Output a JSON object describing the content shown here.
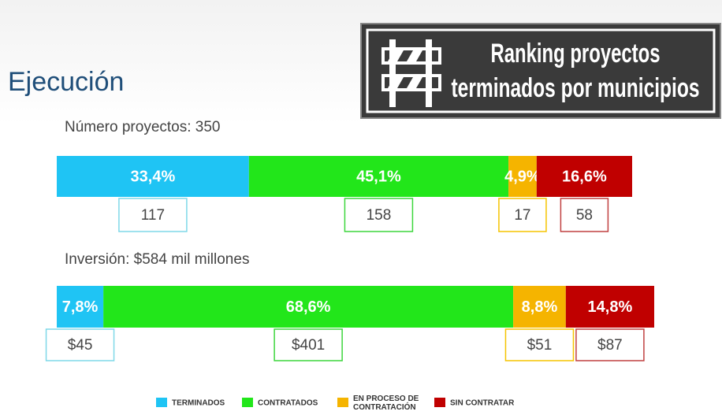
{
  "header": {
    "title": "Ejecución",
    "banner": [
      "Ranking proyectos",
      "terminados por municipios"
    ]
  },
  "legend": [
    {
      "lines": [
        "TERMINADOS"
      ],
      "color": "#1fc4f4"
    },
    {
      "lines": [
        "CONTRATADOS"
      ],
      "color": "#22e61a"
    },
    {
      "lines": [
        "EN PROCESO DE",
        "CONTRATACIÓN"
      ],
      "color": "#f5b400"
    },
    {
      "lines": [
        "SIN CONTRATAR"
      ],
      "color": "#c00000"
    }
  ],
  "chart_data": [
    {
      "type": "stacked-bar",
      "subtitle": "Número proyectos: 350",
      "values": [
        33.4,
        45.1,
        4.9,
        16.6
      ],
      "value_labels": [
        "33,4%",
        "45,1%",
        "4,9%",
        "16,6%"
      ],
      "counts": [
        117,
        158,
        17,
        58
      ],
      "xlim": [
        0,
        100
      ]
    },
    {
      "type": "stacked-bar",
      "subtitle": "Inversión: $584 mil millones",
      "values": [
        7.8,
        68.6,
        8.8,
        14.8
      ],
      "value_labels": [
        "7,8%",
        "68,6%",
        "8,8%",
        "14,8%"
      ],
      "counts": [
        45,
        401,
        51,
        87
      ],
      "count_labels": [
        "$45",
        "$401",
        "$51",
        "$87"
      ],
      "xlim": [
        0,
        100
      ]
    }
  ]
}
